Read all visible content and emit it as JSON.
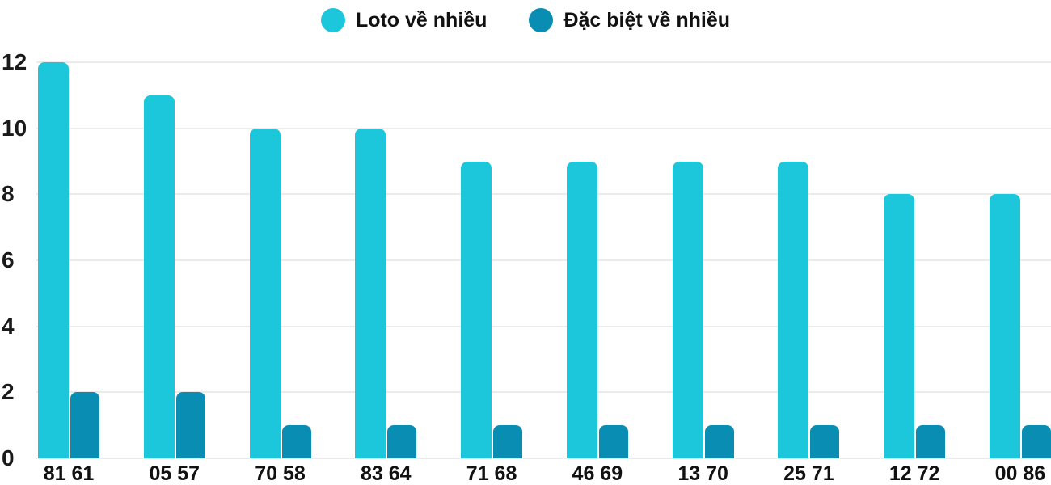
{
  "chart_data": {
    "type": "bar",
    "title": "",
    "xlabel": "",
    "ylabel": "",
    "categories": [
      "81 61",
      "05 57",
      "70 58",
      "83 64",
      "71 68",
      "46 69",
      "13 70",
      "25 71",
      "12 72",
      "00 86"
    ],
    "series": [
      {
        "name": "Loto về nhiều",
        "color": "#1DC7DB",
        "values": [
          12,
          11,
          10,
          10,
          9,
          9,
          9,
          9,
          8,
          8
        ]
      },
      {
        "name": "Đặc biệt về nhiều",
        "color": "#0A8DB3",
        "values": [
          2,
          2,
          1,
          1,
          1,
          1,
          1,
          1,
          1,
          1
        ]
      }
    ],
    "y_ticks": [
      0,
      2,
      4,
      6,
      8,
      10,
      12
    ],
    "ylim": [
      0,
      12
    ],
    "grid": true,
    "legend_position": "top-center",
    "colors": {
      "grid": "#ebebeb",
      "text": "#111111",
      "background": "#ffffff"
    }
  }
}
